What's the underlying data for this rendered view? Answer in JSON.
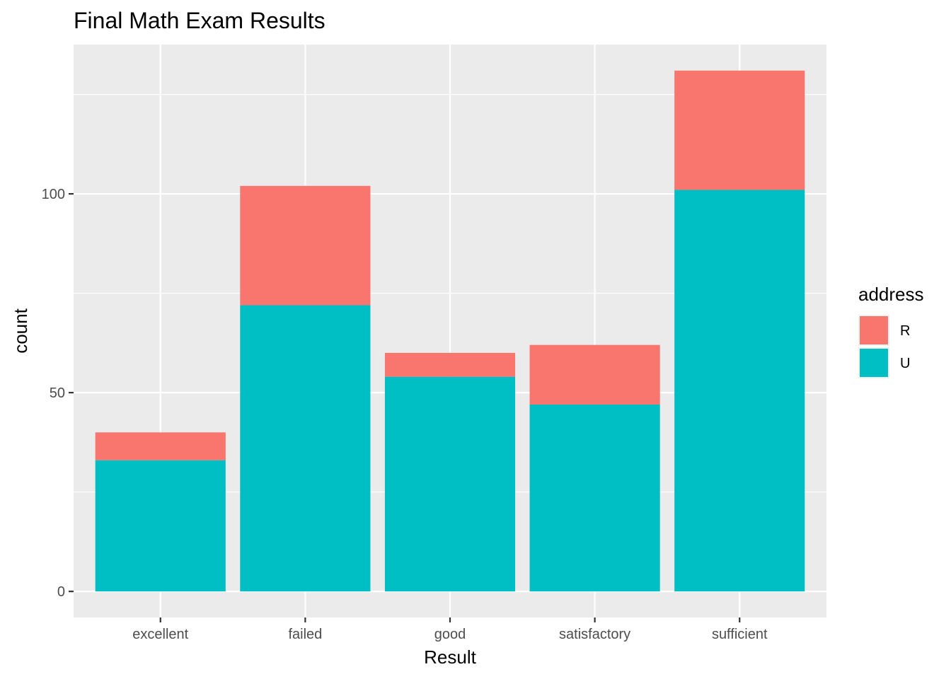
{
  "chart_data": {
    "type": "bar",
    "stacked": true,
    "title": "Final Math Exam Results",
    "xlabel": "Result",
    "ylabel": "count",
    "categories": [
      "excellent",
      "failed",
      "good",
      "satisfactory",
      "sufficient"
    ],
    "series": [
      {
        "name": "R",
        "color": "#F8766D",
        "values": [
          7,
          30,
          6,
          15,
          30
        ]
      },
      {
        "name": "U",
        "color": "#00BFC4",
        "values": [
          33,
          72,
          54,
          47,
          101
        ]
      }
    ],
    "ylim": [
      -6.55,
      137.55
    ],
    "yticks": [
      0,
      50,
      100
    ],
    "yticks_minor": [
      25,
      75,
      125
    ],
    "grid": true,
    "panel_background": "#EBEBEB",
    "legend": {
      "title": "address",
      "position": "right"
    }
  }
}
